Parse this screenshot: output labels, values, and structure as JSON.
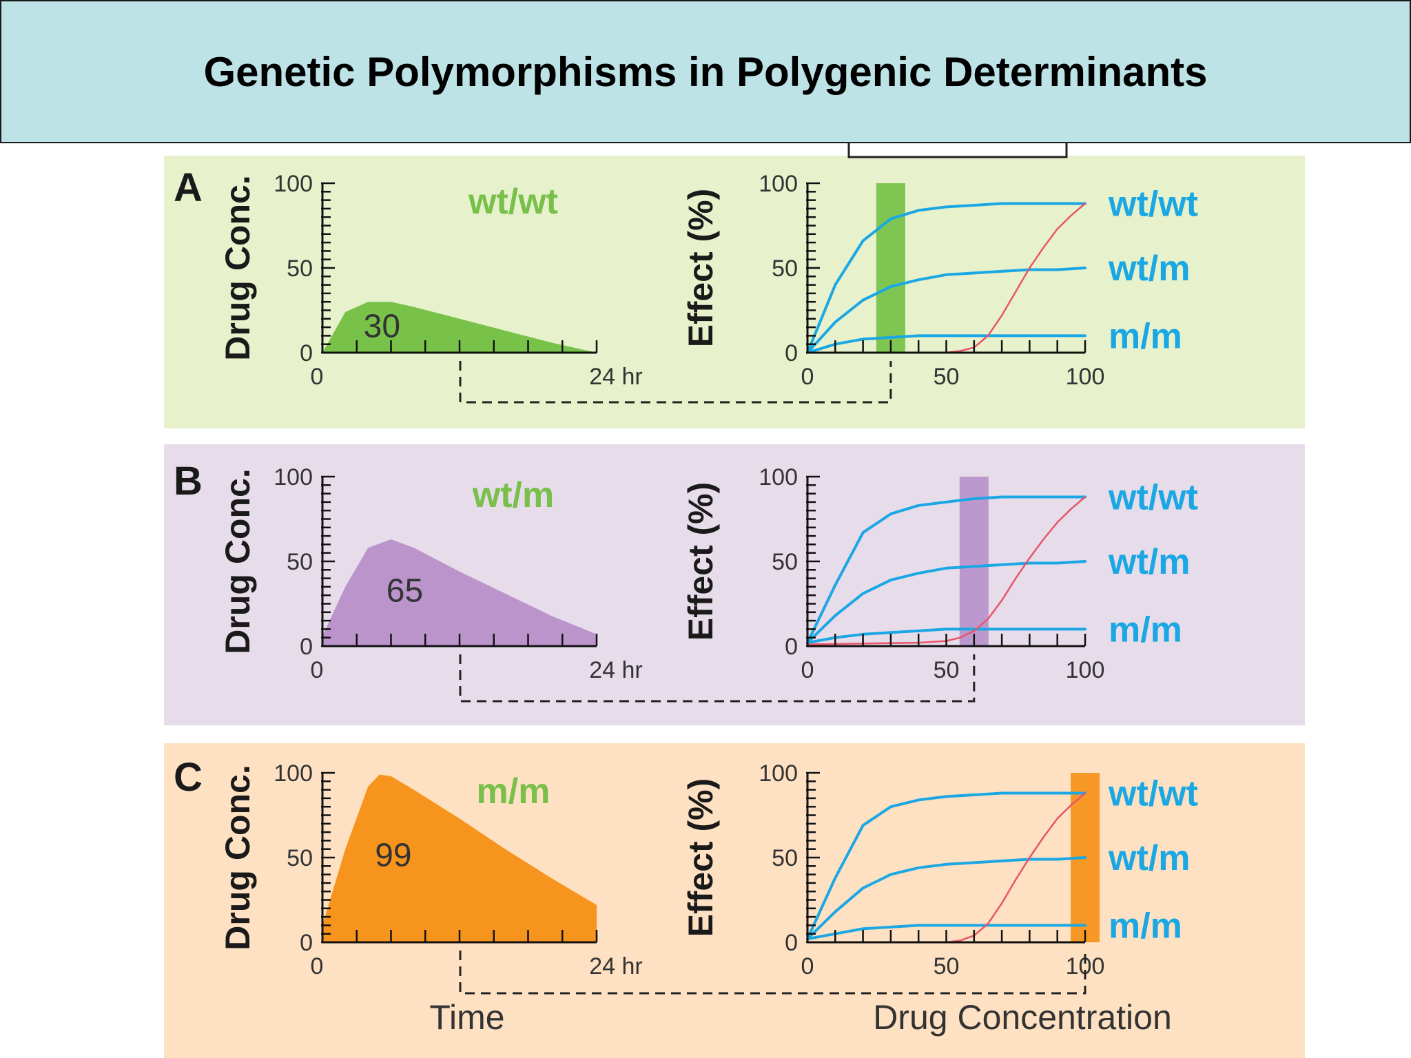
{
  "title": "Genetic Polymorphisms in Polygenic Determinants",
  "colors": {
    "curve_blue": "#1aa7e3",
    "toxicity_red": "#e8546a",
    "genotype_label_green": "#78c04a",
    "genotype_label_blue": "#1aa7e3"
  },
  "bottom_labels": {
    "time": "Time",
    "drug_concentration": "Drug Concentration"
  },
  "chart_data": [
    {
      "panel": "A",
      "type": "area",
      "bg_color": "#e7f1cc",
      "fill_color": "#79c24a",
      "ylabel": "Drug Conc.",
      "yticks": [
        "0",
        "50",
        "100"
      ],
      "xticks": [
        "0",
        "24 hr"
      ],
      "genotype": "wt/wt",
      "peak_label": "30",
      "ylim": [
        0,
        100
      ],
      "xlim": [
        0,
        24
      ],
      "x": [
        0,
        2,
        4,
        6,
        8,
        12,
        16,
        20,
        24
      ],
      "values": [
        0,
        24,
        30,
        30,
        27,
        20,
        13,
        6,
        0
      ]
    },
    {
      "panel": "A",
      "type": "line",
      "ylabel": "Effect (%)",
      "yticks": [
        "0",
        "50",
        "100"
      ],
      "xticks": [
        "0",
        "50",
        "100"
      ],
      "xlim": [
        0,
        100
      ],
      "ylim": [
        0,
        100
      ],
      "highlight_x": 30,
      "highlight_color": "#79c24a",
      "series": [
        {
          "name": "wt/wt",
          "color": "#1aa7e3",
          "x": [
            0,
            10,
            20,
            30,
            40,
            50,
            60,
            70,
            80,
            90,
            100
          ],
          "values": [
            0,
            40,
            66,
            79,
            84,
            86,
            87,
            88,
            88,
            88,
            88
          ]
        },
        {
          "name": "wt/m",
          "color": "#1aa7e3",
          "x": [
            0,
            10,
            20,
            30,
            40,
            50,
            60,
            70,
            80,
            90,
            100
          ],
          "values": [
            0,
            18,
            31,
            39,
            43,
            46,
            47,
            48,
            49,
            49,
            50
          ]
        },
        {
          "name": "m/m",
          "color": "#1aa7e3",
          "x": [
            0,
            10,
            20,
            30,
            40,
            50,
            60,
            70,
            80,
            90,
            100
          ],
          "values": [
            0,
            5,
            8,
            9,
            10,
            10,
            10,
            10,
            10,
            10,
            10
          ]
        },
        {
          "name": "",
          "color": "#e8546a",
          "x": [
            0,
            40,
            50,
            55,
            60,
            65,
            70,
            75,
            80,
            85,
            90,
            95,
            100
          ],
          "values": [
            0,
            0,
            0,
            1,
            3,
            10,
            22,
            36,
            50,
            62,
            73,
            81,
            88
          ]
        }
      ]
    },
    {
      "panel": "B",
      "type": "area",
      "bg_color": "#e7dcea",
      "fill_color": "#bb94cc",
      "ylabel": "Drug Conc.",
      "yticks": [
        "0",
        "50",
        "100"
      ],
      "xticks": [
        "0",
        "24 hr"
      ],
      "genotype": "wt/m",
      "peak_label": "65",
      "ylim": [
        0,
        100
      ],
      "xlim": [
        0,
        24
      ],
      "x": [
        0,
        2,
        4,
        6,
        8,
        12,
        16,
        20,
        24
      ],
      "values": [
        6,
        35,
        58,
        63,
        58,
        44,
        31,
        18,
        7
      ]
    },
    {
      "panel": "B",
      "type": "line",
      "ylabel": "Effect (%)",
      "yticks": [
        "0",
        "50",
        "100"
      ],
      "xticks": [
        "0",
        "50",
        "100"
      ],
      "xlim": [
        0,
        100
      ],
      "ylim": [
        0,
        100
      ],
      "highlight_x": 60,
      "highlight_color": "#bb94cc",
      "series": [
        {
          "name": "wt/wt",
          "color": "#1aa7e3",
          "x": [
            0,
            10,
            20,
            30,
            40,
            50,
            60,
            70,
            80,
            90,
            100
          ],
          "values": [
            2,
            36,
            67,
            78,
            83,
            85,
            87,
            88,
            88,
            88,
            88
          ]
        },
        {
          "name": "wt/m",
          "color": "#1aa7e3",
          "x": [
            0,
            10,
            20,
            30,
            40,
            50,
            60,
            70,
            80,
            90,
            100
          ],
          "values": [
            2,
            18,
            31,
            39,
            43,
            46,
            47,
            48,
            49,
            49,
            50
          ]
        },
        {
          "name": "m/m",
          "color": "#1aa7e3",
          "x": [
            0,
            10,
            20,
            30,
            40,
            50,
            60,
            70,
            80,
            90,
            100
          ],
          "values": [
            2,
            5,
            7,
            8,
            9,
            10,
            10,
            10,
            10,
            10,
            10
          ]
        },
        {
          "name": "",
          "color": "#e8546a",
          "x": [
            0,
            40,
            50,
            55,
            60,
            65,
            70,
            75,
            80,
            85,
            90,
            95,
            100
          ],
          "values": [
            1,
            2,
            3,
            5,
            9,
            16,
            27,
            40,
            52,
            63,
            73,
            81,
            88
          ]
        }
      ]
    },
    {
      "panel": "C",
      "type": "area",
      "bg_color": "#fde1c2",
      "fill_color": "#f7941d",
      "ylabel": "Drug Conc.",
      "yticks": [
        "0",
        "50",
        "100"
      ],
      "xticks": [
        "0",
        "24 hr"
      ],
      "genotype": "m/m",
      "peak_label": "99",
      "ylim": [
        0,
        100
      ],
      "xlim": [
        0,
        24
      ],
      "x": [
        0,
        2,
        4,
        5,
        6,
        8,
        12,
        16,
        20,
        24
      ],
      "values": [
        10,
        55,
        92,
        99,
        98,
        90,
        73,
        55,
        38,
        22
      ]
    },
    {
      "panel": "C",
      "type": "line",
      "ylabel": "Effect (%)",
      "yticks": [
        "0",
        "50",
        "100"
      ],
      "xticks": [
        "0",
        "50",
        "100"
      ],
      "xlim": [
        0,
        100
      ],
      "ylim": [
        0,
        100
      ],
      "highlight_x": 100,
      "highlight_color": "#f7941d",
      "series": [
        {
          "name": "wt/wt",
          "color": "#1aa7e3",
          "x": [
            0,
            10,
            20,
            30,
            40,
            50,
            60,
            70,
            80,
            90,
            100
          ],
          "values": [
            2,
            38,
            69,
            80,
            84,
            86,
            87,
            88,
            88,
            88,
            88
          ]
        },
        {
          "name": "wt/m",
          "color": "#1aa7e3",
          "x": [
            0,
            10,
            20,
            30,
            40,
            50,
            60,
            70,
            80,
            90,
            100
          ],
          "values": [
            2,
            18,
            32,
            40,
            44,
            46,
            47,
            48,
            49,
            49,
            50
          ]
        },
        {
          "name": "m/m",
          "color": "#1aa7e3",
          "x": [
            0,
            10,
            20,
            30,
            40,
            50,
            60,
            70,
            80,
            90,
            100
          ],
          "values": [
            2,
            5,
            8,
            9,
            10,
            10,
            10,
            10,
            10,
            10,
            10
          ]
        },
        {
          "name": "",
          "color": "#e8546a",
          "x": [
            0,
            40,
            50,
            55,
            60,
            65,
            70,
            75,
            80,
            85,
            90,
            95,
            100
          ],
          "values": [
            0,
            0,
            0,
            1,
            4,
            11,
            23,
            37,
            50,
            62,
            73,
            81,
            88
          ]
        }
      ]
    }
  ]
}
